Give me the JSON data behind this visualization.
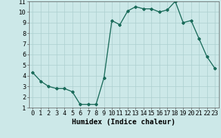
{
  "x": [
    0,
    1,
    2,
    3,
    4,
    5,
    6,
    7,
    8,
    9,
    10,
    11,
    12,
    13,
    14,
    15,
    16,
    17,
    18,
    19,
    20,
    21,
    22,
    23
  ],
  "y": [
    4.3,
    3.5,
    3.0,
    2.8,
    2.8,
    2.5,
    1.3,
    1.3,
    1.3,
    3.8,
    9.2,
    8.8,
    10.1,
    10.5,
    10.3,
    10.3,
    10.0,
    10.2,
    11.0,
    9.0,
    9.2,
    7.5,
    5.8,
    4.7
  ],
  "line_color": "#1a6b5a",
  "marker": "D",
  "marker_size": 2.0,
  "background_color": "#cce8e8",
  "grid_color": "#aacece",
  "xlabel": "Humidex (Indice chaleur)",
  "xlabel_fontsize": 7.5,
  "tick_fontsize": 6.5,
  "xlim": [
    -0.5,
    23.5
  ],
  "ylim": [
    1,
    11
  ],
  "yticks": [
    1,
    2,
    3,
    4,
    5,
    6,
    7,
    8,
    9,
    10,
    11
  ],
  "xticks": [
    0,
    1,
    2,
    3,
    4,
    5,
    6,
    7,
    8,
    9,
    10,
    11,
    12,
    13,
    14,
    15,
    16,
    17,
    18,
    19,
    20,
    21,
    22,
    23
  ],
  "line_width": 1.0
}
